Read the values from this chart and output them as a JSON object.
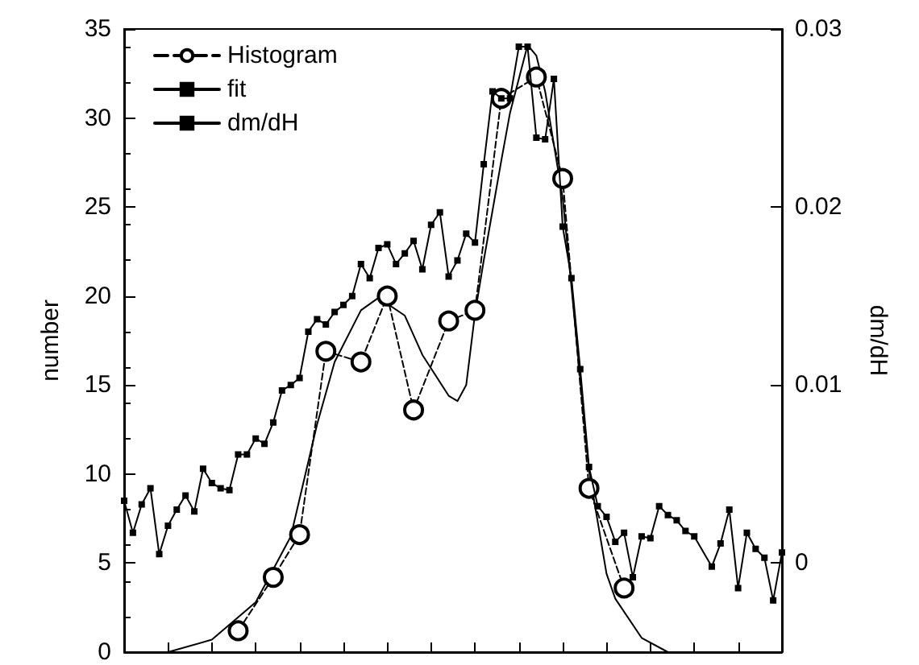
{
  "chart_data": {
    "type": "line",
    "ylabel": "number",
    "y2label": "dm/dH",
    "categories": [
      null,
      null,
      null,
      null,
      null,
      null,
      null,
      null,
      null,
      null,
      null,
      null,
      null,
      null,
      null,
      null,
      null,
      null,
      null,
      null,
      null,
      null,
      null,
      null,
      null,
      null,
      null,
      null,
      null,
      null,
      null,
      null,
      null,
      null,
      null,
      null,
      null,
      null,
      null,
      null,
      null,
      null,
      null,
      null,
      null,
      null,
      null,
      null,
      null,
      null,
      null,
      null,
      null,
      null,
      null,
      null,
      null,
      null,
      null,
      null,
      null,
      null,
      null,
      null,
      null,
      null,
      null,
      null,
      null,
      null,
      null,
      null,
      null,
      null,
      null,
      null
    ],
    "ylim": [
      0,
      35
    ],
    "yticks": [
      0,
      5,
      10,
      15,
      20,
      25,
      30,
      35
    ],
    "y2lim": [
      -0.005,
      0.03
    ],
    "y2ticks": [
      0,
      0.01,
      0.02,
      0.03
    ],
    "legend": "top left",
    "series": [
      {
        "name": "Histogram",
        "color": "#000000",
        "marker": "circle",
        "line_style": "dashed",
        "values": [
          null,
          null,
          null,
          null,
          null,
          null,
          null,
          null,
          null,
          null,
          null,
          null,
          null,
          1.2,
          null,
          null,
          null,
          4.2,
          null,
          null,
          6.6,
          null,
          null,
          16.9,
          null,
          null,
          null,
          16.3,
          null,
          null,
          20.0,
          null,
          null,
          13.6,
          null,
          null,
          null,
          18.6,
          null,
          null,
          19.2,
          null,
          null,
          31.1,
          null,
          null,
          null,
          32.3,
          null,
          null,
          26.6,
          null,
          null,
          9.2,
          null,
          null,
          null,
          3.6,
          null,
          null,
          null,
          null,
          null,
          null,
          null,
          null,
          null,
          null,
          null,
          null,
          null,
          null,
          null,
          null,
          null,
          null
        ]
      },
      {
        "name": "fit",
        "color": "#000000",
        "marker": "none",
        "line_style": "solid",
        "values": [
          null,
          null,
          null,
          null,
          null,
          0,
          null,
          null,
          null,
          null,
          0.7,
          null,
          null,
          null,
          null,
          2.8,
          null,
          null,
          null,
          6.5,
          null,
          null,
          12.8,
          null,
          16.3,
          null,
          null,
          19.2,
          null,
          19.9,
          null,
          null,
          18.9,
          null,
          16.7,
          null,
          null,
          14.4,
          14.1,
          15.0,
          19.0,
          22.0,
          null,
          27.6,
          30.3,
          null,
          34.1,
          33.5,
          31.5,
          null,
          25.5,
          20.5,
          null,
          10.2,
          null,
          4.4,
          3.0,
          null,
          null,
          0.8,
          null,
          null,
          0,
          null,
          null,
          null,
          null,
          null,
          null,
          null,
          null,
          null,
          null,
          null,
          null,
          null
        ]
      },
      {
        "name": "dm/dH",
        "color": "#000000",
        "marker": "square",
        "line_style": "solid",
        "axis": "y2",
        "values": [
          0.0035,
          0.0017,
          0.0033,
          0.0042,
          0.0005,
          0.0021,
          0.003,
          0.0038,
          0.0029,
          0.0053,
          0.0045,
          0.0042,
          0.0041,
          0.0061,
          0.0061,
          0.007,
          0.0067,
          0.0079,
          0.0097,
          0.01,
          0.0104,
          0.013,
          0.0137,
          0.0134,
          0.0141,
          0.0145,
          0.015,
          0.0168,
          0.016,
          0.0177,
          0.0179,
          0.0168,
          0.0174,
          0.0181,
          0.0165,
          0.019,
          0.0197,
          0.0161,
          0.017,
          0.0185,
          0.018,
          0.0224,
          0.0265,
          0.0261,
          0.0261,
          0.029,
          0.029,
          0.0239,
          0.0238,
          0.0272,
          0.0189,
          0.016,
          0.0109,
          0.0054,
          0.0032,
          0.0026,
          0.0012,
          0.0017,
          -0.0008,
          0.0015,
          0.0014,
          0.0032,
          0.0027,
          0.0024,
          0.0018,
          0.0015,
          null,
          -0.0002,
          0.0011,
          0.003,
          -0.0014,
          0.0017,
          0.0008,
          0.0003,
          -0.0021,
          0.0006
        ]
      }
    ]
  }
}
